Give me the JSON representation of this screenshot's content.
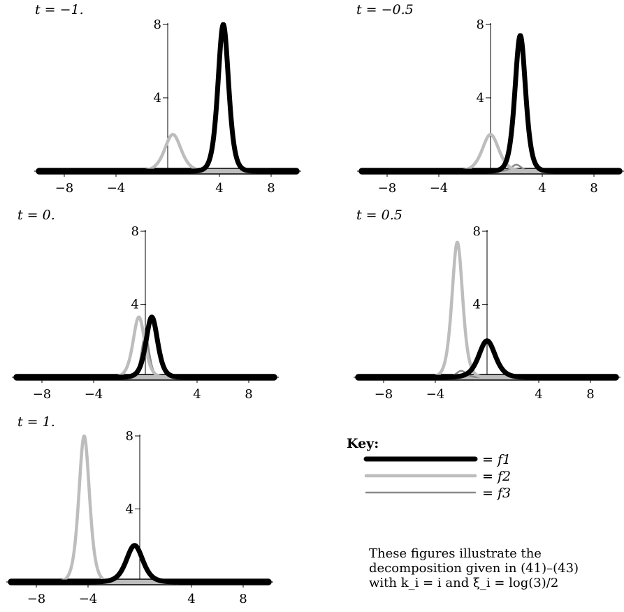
{
  "chart_data": [
    {
      "type": "line",
      "title": "t = −1.",
      "x_ticks": [
        -8,
        -4,
        4,
        8
      ],
      "x_tick_labels": [
        "−8",
        "−4",
        "4",
        "8"
      ],
      "y_ticks": [
        4,
        8
      ],
      "y_tick_labels": [
        "4",
        "8"
      ],
      "xlim": [
        -10,
        10
      ],
      "ylim": [
        0,
        8
      ],
      "series": [
        {
          "name": "f1",
          "peaks": [
            {
              "center": 4.3,
              "height": 8.0,
              "width": 0.55
            }
          ]
        },
        {
          "name": "f2",
          "peaks": [
            {
              "center": 0.4,
              "height": 2.0,
              "width": 0.85
            }
          ]
        },
        {
          "name": "f3",
          "peaks": []
        }
      ]
    },
    {
      "type": "line",
      "title": "t = −0.5",
      "x_ticks": [
        -8,
        -4,
        4,
        8
      ],
      "x_tick_labels": [
        "−8",
        "−4",
        "4",
        "8"
      ],
      "y_ticks": [
        4,
        8
      ],
      "y_tick_labels": [
        "4",
        "8"
      ],
      "xlim": [
        -10,
        10
      ],
      "ylim": [
        0,
        8
      ],
      "series": [
        {
          "name": "f1",
          "peaks": [
            {
              "center": 2.3,
              "height": 7.4,
              "width": 0.55
            }
          ]
        },
        {
          "name": "f2",
          "peaks": [
            {
              "center": 0.0,
              "height": 2.0,
              "width": 0.85
            }
          ]
        },
        {
          "name": "f3",
          "peaks": [
            {
              "center": 2.0,
              "height": 0.35,
              "width": 0.5
            }
          ]
        }
      ]
    },
    {
      "type": "line",
      "title": "t = 0.",
      "x_ticks": [
        -8,
        -4,
        4,
        8
      ],
      "x_tick_labels": [
        "−8",
        "−4",
        "4",
        "8"
      ],
      "y_ticks": [
        4,
        8
      ],
      "y_tick_labels": [
        "4",
        "8"
      ],
      "xlim": [
        -10,
        10
      ],
      "ylim": [
        0,
        8
      ],
      "series": [
        {
          "name": "f1",
          "peaks": [
            {
              "center": 0.5,
              "height": 3.3,
              "width": 0.6
            }
          ]
        },
        {
          "name": "f2",
          "peaks": [
            {
              "center": -0.5,
              "height": 3.3,
              "width": 0.6
            }
          ]
        },
        {
          "name": "f3",
          "peaks": [
            {
              "center": 0.0,
              "height": 2.3,
              "width": 0.4
            }
          ]
        }
      ]
    },
    {
      "type": "line",
      "title": "t = 0.5",
      "x_ticks": [
        -8,
        -4,
        4,
        8
      ],
      "x_tick_labels": [
        "−8",
        "−4",
        "4",
        "8"
      ],
      "y_ticks": [
        4,
        8
      ],
      "y_tick_labels": [
        "4",
        "8"
      ],
      "xlim": [
        -10,
        10
      ],
      "ylim": [
        0,
        8
      ],
      "series": [
        {
          "name": "f1",
          "peaks": [
            {
              "center": 0.0,
              "height": 2.0,
              "width": 0.85
            }
          ]
        },
        {
          "name": "f2",
          "peaks": [
            {
              "center": -2.3,
              "height": 7.4,
              "width": 0.55
            }
          ]
        },
        {
          "name": "f3",
          "peaks": [
            {
              "center": -2.0,
              "height": 0.35,
              "width": 0.5
            }
          ]
        }
      ]
    },
    {
      "type": "line",
      "title": "t = 1.",
      "x_ticks": [
        -8,
        -4,
        4,
        8
      ],
      "x_tick_labels": [
        "−8",
        "−4",
        "4",
        "8"
      ],
      "y_ticks": [
        4,
        8
      ],
      "y_tick_labels": [
        "4",
        "8"
      ],
      "xlim": [
        -10,
        10
      ],
      "ylim": [
        0,
        8
      ],
      "series": [
        {
          "name": "f1",
          "peaks": [
            {
              "center": -0.4,
              "height": 2.0,
              "width": 0.85
            }
          ]
        },
        {
          "name": "f2",
          "peaks": [
            {
              "center": -4.3,
              "height": 8.0,
              "width": 0.55
            }
          ]
        },
        {
          "name": "f3",
          "peaks": []
        }
      ]
    }
  ],
  "legend": {
    "title": "Key:",
    "items": [
      {
        "label": "= f1",
        "color": "#000000"
      },
      {
        "label": "= f2",
        "color": "#bdbdbd"
      },
      {
        "label": "= f3",
        "color": "#8a8a8a"
      }
    ]
  },
  "note": {
    "line1": "These figures illustrate the",
    "line2": "decomposition given in (41)–(43)",
    "line3": "with k_i = i and ξ_i = log(3)/2"
  }
}
